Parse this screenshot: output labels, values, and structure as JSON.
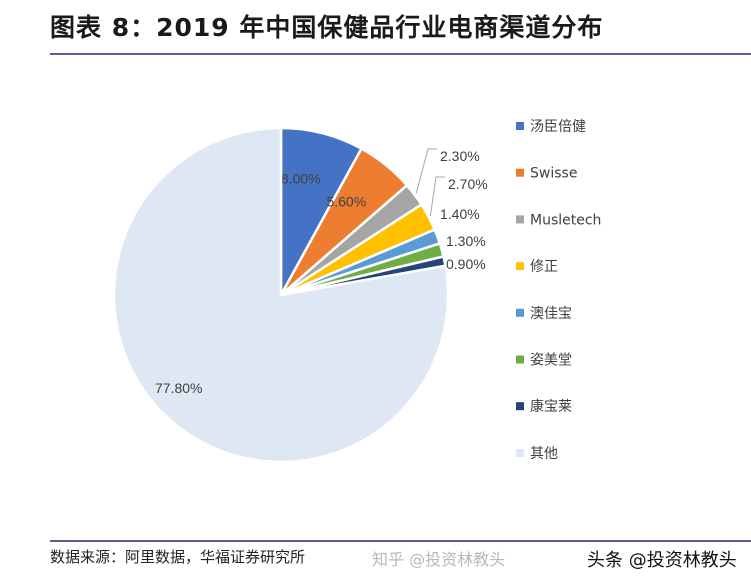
{
  "title": "图表 8：2019 年中国保健品行业电商渠道分布",
  "footer": "数据来源：阿里数据，华福证券研究所",
  "watermarks": [
    "知乎 @投资林教头",
    "头条 @投资林教头"
  ],
  "chart_data": {
    "type": "pie",
    "title": "",
    "legend_position": "right",
    "categories": [
      "汤臣倍健",
      "Swisse",
      "Musletech",
      "修正",
      "澳佳宝",
      "姿美堂",
      "康宝莱",
      "其他"
    ],
    "values": [
      8.0,
      5.6,
      2.3,
      2.7,
      1.4,
      1.3,
      0.9,
      77.8
    ],
    "data_labels": [
      "8.00%",
      "5.60%",
      "2.30%",
      "2.70%",
      "1.40%",
      "1.30%",
      "0.90%",
      "77.80%"
    ],
    "colors": [
      "#4472c4",
      "#ed7d31",
      "#a5a5a5",
      "#ffc000",
      "#5b9bd5",
      "#70ad47",
      "#264478",
      "#dde8f4"
    ]
  }
}
